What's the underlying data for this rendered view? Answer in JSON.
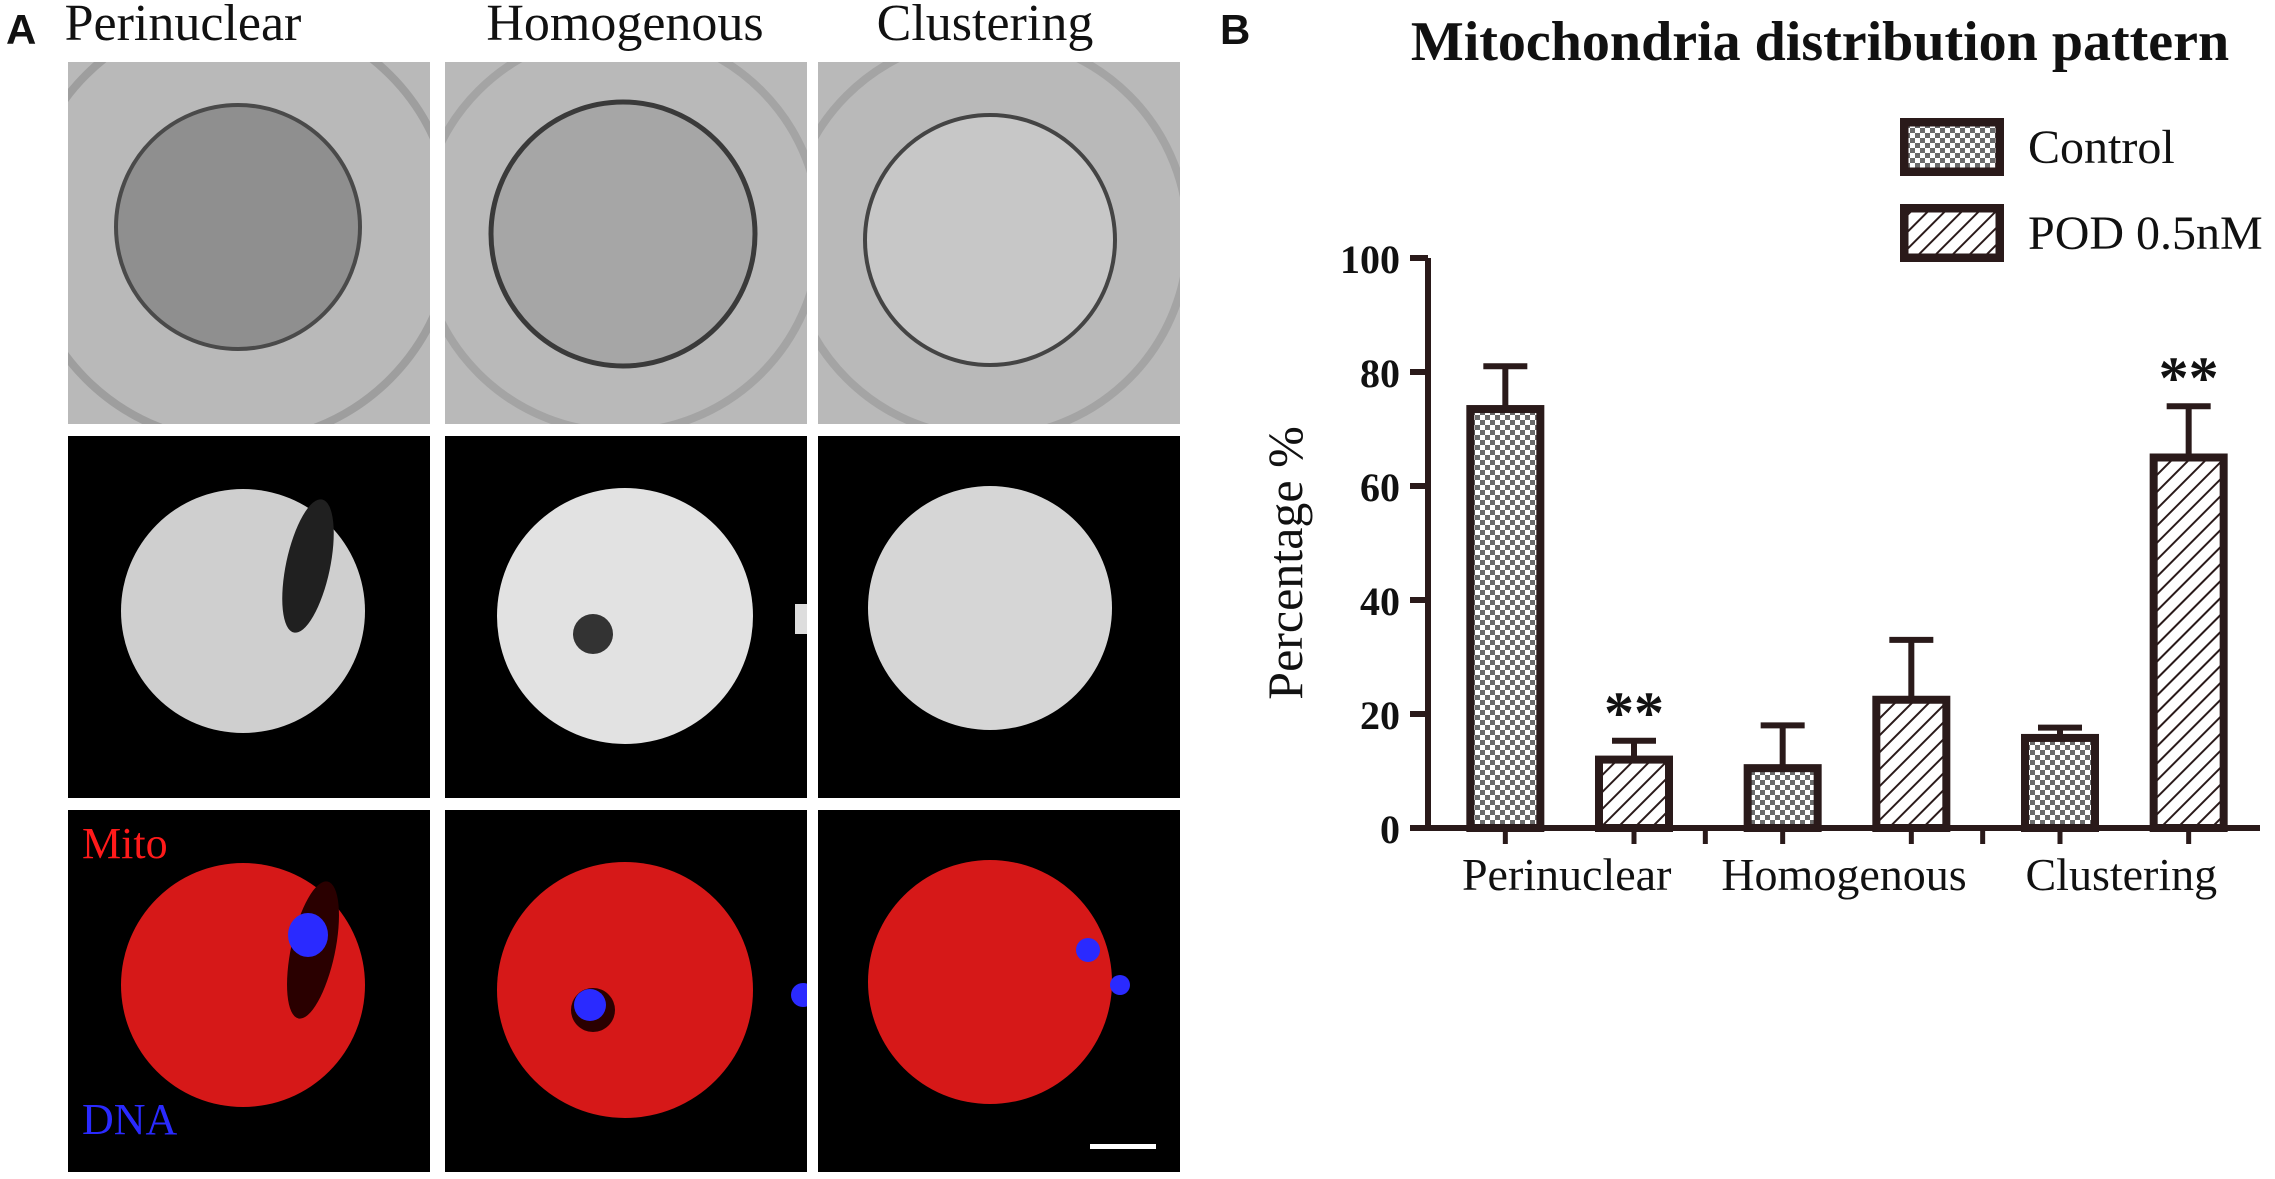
{
  "panels": {
    "a": "A",
    "b": "B"
  },
  "image_columns": [
    "Perinuclear",
    "Homogenous",
    "Clustering"
  ],
  "stain_labels": {
    "mito": "Mito",
    "dna": "DNA"
  },
  "colors": {
    "mito": "#ff1a1a",
    "dna": "#2a2aff",
    "bar_stroke": "#2a1a1a"
  },
  "legend": [
    {
      "label": "Control",
      "pattern": "checker"
    },
    {
      "label": "POD 0.5nM",
      "pattern": "hatch"
    }
  ],
  "chart_data": {
    "type": "bar",
    "title": "Mitochondria distribution pattern",
    "ylabel": "Percentage %",
    "xlabel": "",
    "ylim": [
      0,
      100
    ],
    "yticks": [
      0,
      20,
      40,
      60,
      80,
      100
    ],
    "categories": [
      "Perinuclear",
      "Homogenous",
      "Clustering"
    ],
    "series": [
      {
        "name": "Control",
        "values": [
          73.5,
          10.5,
          15.8
        ],
        "errors": [
          7.5,
          7.5,
          1.8
        ]
      },
      {
        "name": "POD 0.5nM",
        "values": [
          12,
          22.5,
          65
        ],
        "errors": [
          3.3,
          10.5,
          9
        ]
      }
    ],
    "annotations": [
      {
        "text": "**",
        "series": 1,
        "category": 0
      },
      {
        "text": "**",
        "series": 1,
        "category": 2
      }
    ]
  }
}
